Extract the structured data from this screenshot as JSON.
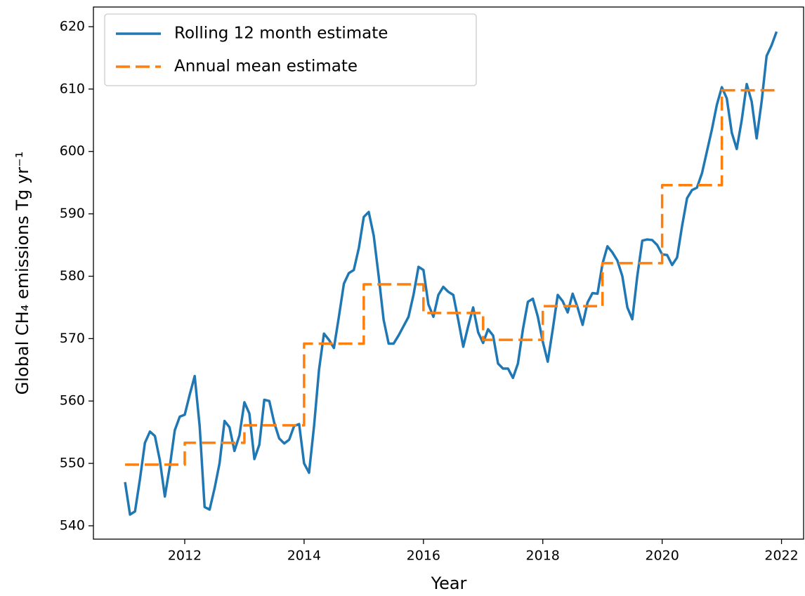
{
  "chart_data": {
    "type": "line",
    "xlabel": "Year",
    "ylabel": "Global CH₄ emissions Tg yr⁻¹",
    "xlim": [
      2010.47,
      2022.37
    ],
    "ylim": [
      537.86,
      623.15
    ],
    "xticks": [
      2012,
      2014,
      2016,
      2018,
      2020,
      2022
    ],
    "yticks": [
      540,
      550,
      560,
      570,
      580,
      590,
      600,
      610,
      620
    ],
    "grid": false,
    "legend": "upper left",
    "x": [
      2011.0,
      2011.083,
      2011.167,
      2011.25,
      2011.333,
      2011.417,
      2011.5,
      2011.583,
      2011.667,
      2011.75,
      2011.833,
      2011.917,
      2012.0,
      2012.083,
      2012.167,
      2012.25,
      2012.333,
      2012.417,
      2012.5,
      2012.583,
      2012.667,
      2012.75,
      2012.833,
      2012.917,
      2013.0,
      2013.083,
      2013.167,
      2013.25,
      2013.333,
      2013.417,
      2013.5,
      2013.583,
      2013.667,
      2013.75,
      2013.833,
      2013.917,
      2014.0,
      2014.083,
      2014.167,
      2014.25,
      2014.333,
      2014.417,
      2014.5,
      2014.583,
      2014.667,
      2014.75,
      2014.833,
      2014.917,
      2015.0,
      2015.083,
      2015.167,
      2015.25,
      2015.333,
      2015.417,
      2015.5,
      2015.583,
      2015.667,
      2015.75,
      2015.833,
      2015.917,
      2016.0,
      2016.083,
      2016.167,
      2016.25,
      2016.333,
      2016.417,
      2016.5,
      2016.583,
      2016.667,
      2016.75,
      2016.833,
      2016.917,
      2017.0,
      2017.083,
      2017.167,
      2017.25,
      2017.333,
      2017.417,
      2017.5,
      2017.583,
      2017.667,
      2017.75,
      2017.833,
      2017.917,
      2018.0,
      2018.083,
      2018.167,
      2018.25,
      2018.333,
      2018.417,
      2018.5,
      2018.583,
      2018.667,
      2018.75,
      2018.833,
      2018.917,
      2019.0,
      2019.083,
      2019.167,
      2019.25,
      2019.333,
      2019.417,
      2019.5,
      2019.583,
      2019.667,
      2019.75,
      2019.833,
      2019.917,
      2020.0,
      2020.083,
      2020.167,
      2020.25,
      2020.333,
      2020.417,
      2020.5,
      2020.583,
      2020.667,
      2020.75,
      2020.833,
      2020.917,
      2021.0,
      2021.083,
      2021.167,
      2021.25,
      2021.333,
      2021.417,
      2021.5,
      2021.583,
      2021.667,
      2021.75,
      2021.833,
      2021.917
    ],
    "series": [
      {
        "name": "Rolling 12 month estimate",
        "color": "#1f77b4",
        "dash": false,
        "drawstyle": "default",
        "values": [
          547,
          541.8,
          542.3,
          547.5,
          553.3,
          555.1,
          554.4,
          550.5,
          544.7,
          549.5,
          555.3,
          557.5,
          557.8,
          561,
          564,
          556,
          543,
          542.6,
          546,
          550,
          556.8,
          555.8,
          552,
          554.5,
          559.8,
          558,
          550.7,
          553,
          560.2,
          560,
          556.5,
          554,
          553.2,
          553.8,
          556,
          556.3,
          550,
          548.5,
          556,
          565,
          570.8,
          569.8,
          568.5,
          573.5,
          578.8,
          580.5,
          581,
          584.5,
          589.5,
          590.3,
          586.5,
          580,
          573,
          569.2,
          569.2,
          570.5,
          572,
          573.5,
          577,
          581.5,
          581,
          575.5,
          573.5,
          577,
          578.3,
          577.5,
          577,
          573,
          568.7,
          572,
          575,
          571,
          569.3,
          571.5,
          570.5,
          566,
          565.2,
          565.2,
          563.7,
          566,
          571.5,
          575.9,
          576.4,
          573.5,
          569.5,
          566.3,
          571.5,
          577,
          576,
          574.2,
          577.2,
          575,
          572.2,
          575.8,
          577.3,
          577.2,
          582,
          584.8,
          583.8,
          582.5,
          580,
          575,
          573.1,
          580,
          585.7,
          585.9,
          585.8,
          585,
          583.5,
          583.4,
          581.8,
          583,
          588,
          592.5,
          593.8,
          594.2,
          596.5,
          600,
          603.5,
          607.5,
          610.3,
          608.5,
          603,
          600.4,
          605,
          610.8,
          608,
          602.1,
          608,
          615.3,
          617,
          619.2
        ]
      },
      {
        "name": "Annual mean estimate",
        "color": "#ff7f0e",
        "dash": true,
        "drawstyle": "steps-post",
        "values": [
          549.8,
          549.8,
          549.8,
          549.8,
          549.8,
          549.8,
          549.8,
          549.8,
          549.8,
          549.8,
          549.8,
          549.8,
          553.3,
          553.3,
          553.3,
          553.3,
          553.3,
          553.3,
          553.3,
          553.3,
          553.3,
          553.3,
          553.3,
          553.3,
          556.1,
          556.1,
          556.1,
          556.1,
          556.1,
          556.1,
          556.1,
          556.1,
          556.1,
          556.1,
          556.1,
          556.1,
          569.2,
          569.2,
          569.2,
          569.2,
          569.2,
          569.2,
          569.2,
          569.2,
          569.2,
          569.2,
          569.2,
          569.2,
          578.7,
          578.7,
          578.7,
          578.7,
          578.7,
          578.7,
          578.7,
          578.7,
          578.7,
          578.7,
          578.7,
          578.7,
          574.1,
          574.1,
          574.1,
          574.1,
          574.1,
          574.1,
          574.1,
          574.1,
          574.1,
          574.1,
          574.1,
          574.1,
          569.8,
          569.8,
          569.8,
          569.8,
          569.8,
          569.8,
          569.8,
          569.8,
          569.8,
          569.8,
          569.8,
          569.8,
          575.2,
          575.2,
          575.2,
          575.2,
          575.2,
          575.2,
          575.2,
          575.2,
          575.2,
          575.2,
          575.2,
          575.2,
          582.1,
          582.1,
          582.1,
          582.1,
          582.1,
          582.1,
          582.1,
          582.1,
          582.1,
          582.1,
          582.1,
          582.1,
          594.6,
          594.6,
          594.6,
          594.6,
          594.6,
          594.6,
          594.6,
          594.6,
          594.6,
          594.6,
          594.6,
          594.6,
          609.8,
          609.8,
          609.8,
          609.8,
          609.8,
          609.8,
          609.8,
          609.8,
          609.8,
          609.8,
          609.8,
          609.8
        ]
      }
    ]
  }
}
